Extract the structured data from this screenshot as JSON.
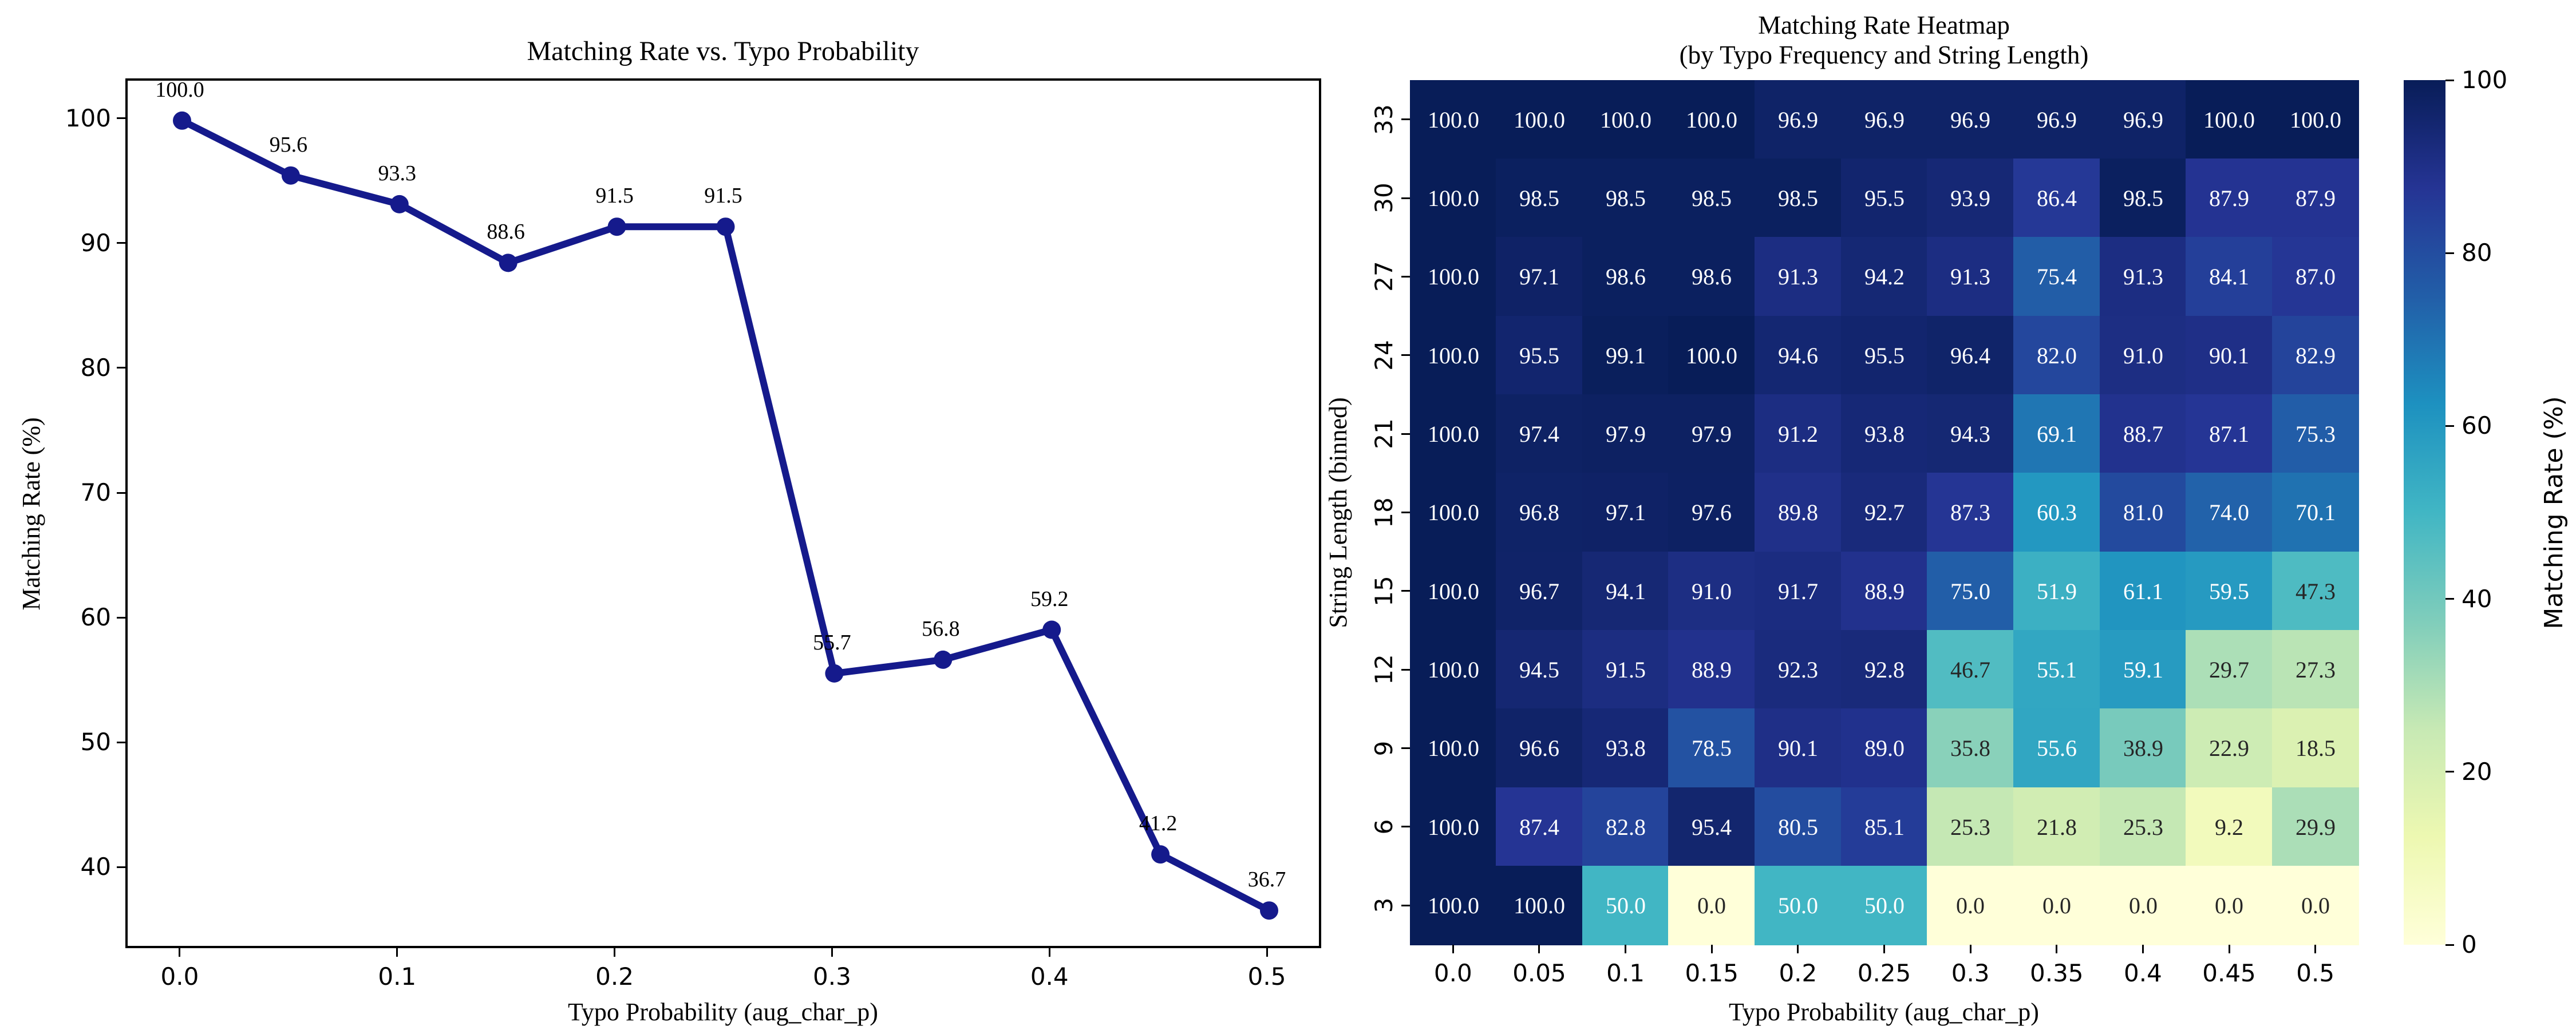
{
  "figure": {
    "background": "#ffffff",
    "axis_color": "#000000",
    "annotation_dark_text": "#262626",
    "annotation_light_text": "#ffffff"
  },
  "chart_data": [
    {
      "type": "line",
      "title": "Matching Rate vs. Typo Probability",
      "xlabel": "Typo Probability (aug_char_p)",
      "ylabel": "Matching Rate (%)",
      "x": [
        0.0,
        0.05,
        0.1,
        0.15,
        0.2,
        0.25,
        0.3,
        0.35,
        0.4,
        0.45,
        0.5
      ],
      "y": [
        100.0,
        95.6,
        93.3,
        88.6,
        91.5,
        91.5,
        55.7,
        56.8,
        59.2,
        41.2,
        36.7
      ],
      "point_labels": [
        "100.0",
        "95.6",
        "93.3",
        "88.6",
        "91.5",
        "91.5",
        "55.7",
        "56.8",
        "59.2",
        "41.2",
        "36.7"
      ],
      "x_ticks": [
        0.0,
        0.1,
        0.2,
        0.3,
        0.4,
        0.5
      ],
      "x_tick_labels": [
        "0.0",
        "0.1",
        "0.2",
        "0.3",
        "0.4",
        "0.5"
      ],
      "y_ticks": [
        40,
        50,
        60,
        70,
        80,
        90,
        100
      ],
      "y_tick_labels": [
        "40",
        "50",
        "60",
        "70",
        "80",
        "90",
        "100"
      ],
      "xlim": [
        -0.025,
        0.525
      ],
      "ylim": [
        33.5,
        103.2
      ],
      "line_color": "#151a8c",
      "marker": "o",
      "grid": false,
      "legend": "none"
    },
    {
      "type": "heatmap",
      "title_lines": [
        "Matching Rate Heatmap",
        "(by Typo Frequency and String Length)"
      ],
      "xlabel": "Typo Probability (aug_char_p)",
      "ylabel": "String Length (binned)",
      "columns": [
        "0.0",
        "0.05",
        "0.1",
        "0.15",
        "0.2",
        "0.25",
        "0.3",
        "0.35",
        "0.4",
        "0.45",
        "0.5"
      ],
      "rows": [
        "33",
        "30",
        "27",
        "24",
        "21",
        "18",
        "15",
        "12",
        "9",
        "6",
        "3"
      ],
      "values": [
        [
          100.0,
          100.0,
          100.0,
          100.0,
          96.9,
          96.9,
          96.9,
          96.9,
          96.9,
          100.0,
          100.0
        ],
        [
          100.0,
          98.5,
          98.5,
          98.5,
          98.5,
          95.5,
          93.9,
          86.4,
          98.5,
          87.9,
          87.9
        ],
        [
          100.0,
          97.1,
          98.6,
          98.6,
          91.3,
          94.2,
          91.3,
          75.4,
          91.3,
          84.1,
          87.0
        ],
        [
          100.0,
          95.5,
          99.1,
          100.0,
          94.6,
          95.5,
          96.4,
          82.0,
          91.0,
          90.1,
          82.9
        ],
        [
          100.0,
          97.4,
          97.9,
          97.9,
          91.2,
          93.8,
          94.3,
          69.1,
          88.7,
          87.1,
          75.3
        ],
        [
          100.0,
          96.8,
          97.1,
          97.6,
          89.8,
          92.7,
          87.3,
          60.3,
          81.0,
          74.0,
          70.1
        ],
        [
          100.0,
          96.7,
          94.1,
          91.0,
          91.7,
          88.9,
          75.0,
          51.9,
          61.1,
          59.5,
          47.3
        ],
        [
          100.0,
          94.5,
          91.5,
          88.9,
          92.3,
          92.8,
          46.7,
          55.1,
          59.1,
          29.7,
          27.3
        ],
        [
          100.0,
          96.6,
          93.8,
          78.5,
          90.1,
          89.0,
          35.8,
          55.6,
          38.9,
          22.9,
          18.5
        ],
        [
          100.0,
          87.4,
          82.8,
          95.4,
          80.5,
          85.1,
          25.3,
          21.8,
          25.3,
          9.2,
          29.9
        ],
        [
          100.0,
          100.0,
          50.0,
          0.0,
          50.0,
          50.0,
          0.0,
          0.0,
          0.0,
          0.0,
          0.0
        ]
      ],
      "colormap": "YlGnBu",
      "vmin": 0,
      "vmax": 100,
      "colorbar": {
        "ticks": [
          100,
          80,
          60,
          40,
          20,
          0
        ],
        "tick_labels": [
          "100",
          "80",
          "60",
          "40",
          "20",
          "0"
        ],
        "label": "Matching Rate (%)"
      }
    }
  ]
}
